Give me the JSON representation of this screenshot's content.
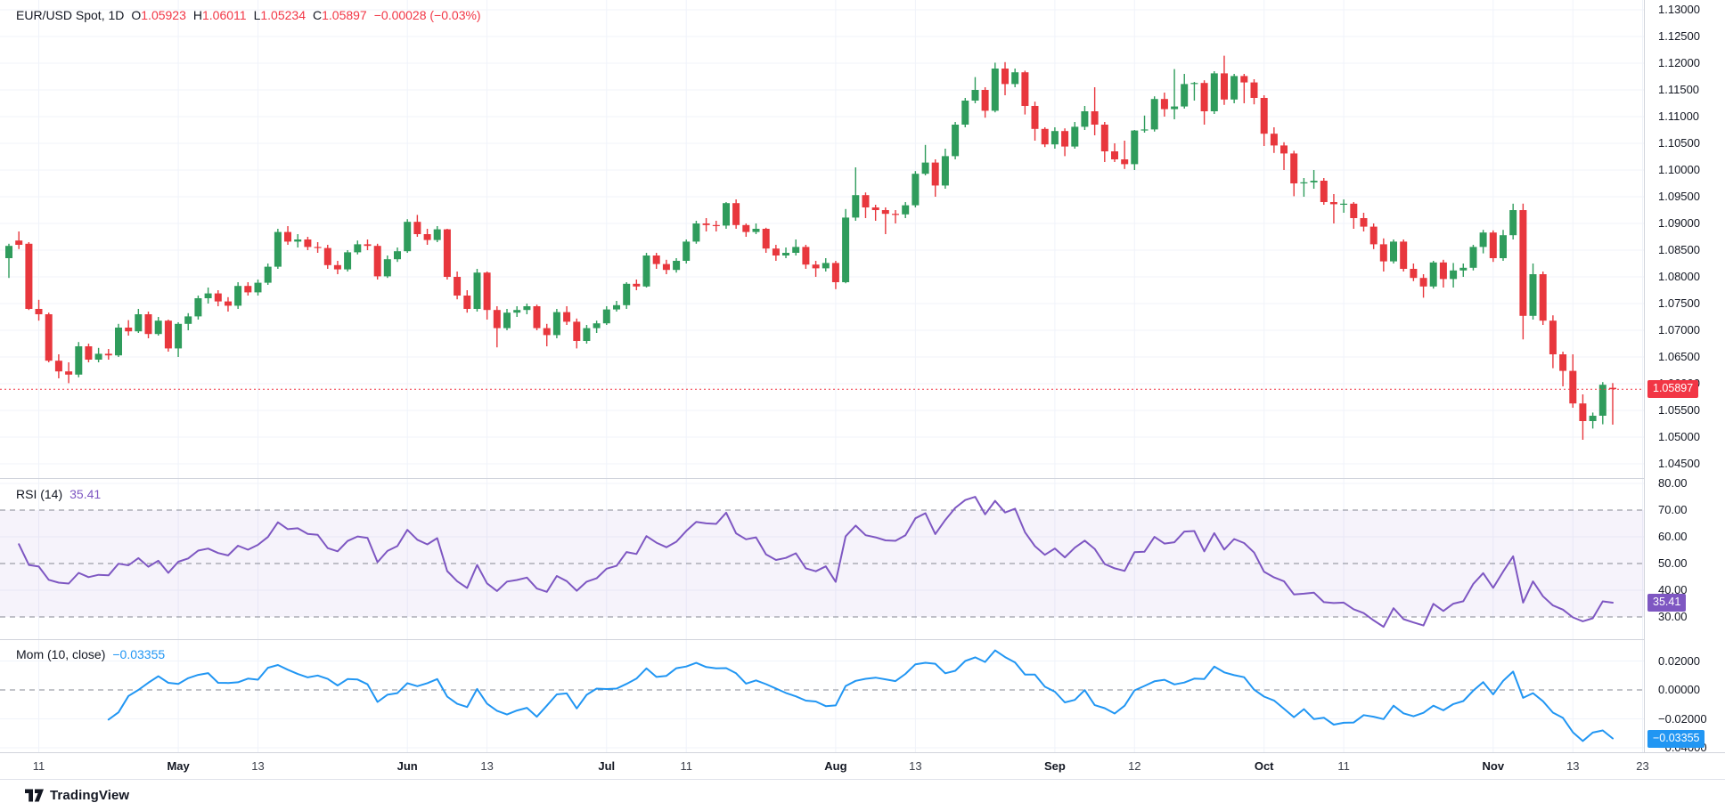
{
  "legend_price": {
    "title": "EUR/USD Spot, 1D",
    "o_label": "O",
    "o_value": "1.05923",
    "h_label": "H",
    "h_value": "1.06011",
    "l_label": "L",
    "l_value": "1.05234",
    "c_label": "C",
    "c_value": "1.05897",
    "change": "−0.00028 (−0.03%)"
  },
  "legend_rsi": {
    "title": "RSI (14)",
    "value": "35.41"
  },
  "legend_mom": {
    "title": "Mom (10, close)",
    "value": "−0.03355"
  },
  "tags": {
    "price": "1.05897",
    "rsi": "35.41",
    "mom": "−0.03355"
  },
  "footer": {
    "brand": "TradingView"
  },
  "chart_data": {
    "type": "candlestick",
    "title": "EUR/USD Spot, 1D",
    "symbol": "EUR/USD Spot",
    "interval": "1D",
    "last": {
      "open": 1.05923,
      "high": 1.06011,
      "low": 1.05234,
      "close": 1.05897,
      "change": "−0.00028",
      "change_pct": "−0.03%"
    },
    "price_axis_ticks": [
      {
        "label": "1.13000",
        "v": 1.13
      },
      {
        "label": "1.12500",
        "v": 1.125
      },
      {
        "label": "1.12000",
        "v": 1.12
      },
      {
        "label": "1.11500",
        "v": 1.115
      },
      {
        "label": "1.11000",
        "v": 1.11
      },
      {
        "label": "1.10500",
        "v": 1.105
      },
      {
        "label": "1.10000",
        "v": 1.1
      },
      {
        "label": "1.09500",
        "v": 1.095
      },
      {
        "label": "1.09000",
        "v": 1.09
      },
      {
        "label": "1.08500",
        "v": 1.085
      },
      {
        "label": "1.08000",
        "v": 1.08
      },
      {
        "label": "1.07500",
        "v": 1.075
      },
      {
        "label": "1.07000",
        "v": 1.07
      },
      {
        "label": "1.06500",
        "v": 1.065
      },
      {
        "label": "1.06000",
        "v": 1.06
      },
      {
        "label": "1.05500",
        "v": 1.055
      },
      {
        "label": "1.05000",
        "v": 1.05
      },
      {
        "label": "1.04500",
        "v": 1.045
      }
    ],
    "rsi_axis_ticks": [
      {
        "label": "80.00",
        "v": 80
      },
      {
        "label": "70.00",
        "v": 70
      },
      {
        "label": "60.00",
        "v": 60
      },
      {
        "label": "50.00",
        "v": 50
      },
      {
        "label": "40.00",
        "v": 40
      },
      {
        "label": "30.00",
        "v": 30
      }
    ],
    "mom_axis_ticks": [
      {
        "label": "0.02000",
        "v": 0.02
      },
      {
        "label": "0.00000",
        "v": 0
      },
      {
        "label": "−0.02000",
        "v": -0.02
      },
      {
        "label": "−0.04000",
        "v": -0.04
      }
    ],
    "time_labels": [
      {
        "label": "11",
        "i": 3
      },
      {
        "label": "May",
        "i": 17,
        "bold": true
      },
      {
        "label": "13",
        "i": 25
      },
      {
        "label": "Jun",
        "i": 40,
        "bold": true
      },
      {
        "label": "13",
        "i": 48
      },
      {
        "label": "Jul",
        "i": 60,
        "bold": true
      },
      {
        "label": "11",
        "i": 68
      },
      {
        "label": "Aug",
        "i": 83,
        "bold": true
      },
      {
        "label": "13",
        "i": 91
      },
      {
        "label": "Sep",
        "i": 105,
        "bold": true
      },
      {
        "label": "12",
        "i": 113
      },
      {
        "label": "Oct",
        "i": 126,
        "bold": true
      },
      {
        "label": "11",
        "i": 134
      },
      {
        "label": "Nov",
        "i": 149,
        "bold": true
      },
      {
        "label": "13",
        "i": 157
      },
      {
        "label": "23",
        "i": 164
      }
    ],
    "rsi_last": 35.41,
    "mom_last": -0.03355,
    "rsi_dashed_levels": [
      70,
      50,
      30
    ],
    "rsi_band": [
      30,
      70
    ],
    "rsi_grid_levels": [
      80,
      60,
      40
    ],
    "mom_dashed_levels": [
      0
    ],
    "mom_grid_levels": [
      0.02,
      -0.02,
      -0.04
    ],
    "price_ylim": [
      1.0425,
      1.1318
    ],
    "rsi_ylim": [
      26.5,
      81.5
    ],
    "mom_ylim": [
      -0.0431,
      0.0345
    ],
    "colors": {
      "up": "#2f9c5c",
      "down": "#e8373d",
      "last_price": "#f23645",
      "rsi": "#7e57c2",
      "mom": "#2196f3",
      "grid": "#f0f3fa",
      "dashed": "#858a93",
      "text": "#131722"
    },
    "candles": [
      [
        1.0835,
        1.0862,
        1.0798,
        1.0858
      ],
      [
        1.0868,
        1.0885,
        1.0852,
        1.086
      ],
      [
        1.0862,
        1.0865,
        1.0738,
        1.074
      ],
      [
        1.074,
        1.0757,
        1.0718,
        1.073
      ],
      [
        1.073,
        1.0733,
        1.064,
        1.0643
      ],
      [
        1.0643,
        1.0655,
        1.061,
        1.0623
      ],
      [
        1.0623,
        1.064,
        1.0601,
        1.0617
      ],
      [
        1.0617,
        1.0678,
        1.0612,
        1.067
      ],
      [
        1.067,
        1.0675,
        1.064,
        1.0645
      ],
      [
        1.0645,
        1.0667,
        1.064,
        1.0656
      ],
      [
        1.0656,
        1.0665,
        1.0645,
        1.0653
      ],
      [
        1.0653,
        1.0712,
        1.065,
        1.0705
      ],
      [
        1.0705,
        1.0719,
        1.069,
        1.0698
      ],
      [
        1.0698,
        1.074,
        1.0695,
        1.073
      ],
      [
        1.073,
        1.0735,
        1.0685,
        1.0693
      ],
      [
        1.0693,
        1.0725,
        1.069,
        1.0718
      ],
      [
        1.0718,
        1.072,
        1.066,
        1.0666
      ],
      [
        1.0666,
        1.0715,
        1.065,
        1.0712
      ],
      [
        1.0712,
        1.0732,
        1.07,
        1.0726
      ],
      [
        1.0726,
        1.0765,
        1.072,
        1.076
      ],
      [
        1.076,
        1.078,
        1.075,
        1.0769
      ],
      [
        1.0769,
        1.0775,
        1.0745,
        1.0754
      ],
      [
        1.0754,
        1.0762,
        1.0735,
        1.0746
      ],
      [
        1.0746,
        1.079,
        1.074,
        1.0783
      ],
      [
        1.0783,
        1.079,
        1.0765,
        1.0771
      ],
      [
        1.0771,
        1.0795,
        1.0765,
        1.0789
      ],
      [
        1.0789,
        1.0825,
        1.0785,
        1.0819
      ],
      [
        1.0819,
        1.089,
        1.0815,
        1.0884
      ],
      [
        1.0884,
        1.0895,
        1.086,
        1.0866
      ],
      [
        1.0866,
        1.088,
        1.0855,
        1.087
      ],
      [
        1.087,
        1.0875,
        1.085,
        1.0856
      ],
      [
        1.0856,
        1.0865,
        1.0845,
        1.0854
      ],
      [
        1.0854,
        1.086,
        1.0815,
        1.0822
      ],
      [
        1.0822,
        1.083,
        1.0805,
        1.0814
      ],
      [
        1.0814,
        1.085,
        1.081,
        1.0846
      ],
      [
        1.0846,
        1.0868,
        1.0842,
        1.0861
      ],
      [
        1.0861,
        1.087,
        1.085,
        1.0858
      ],
      [
        1.0858,
        1.0862,
        1.0795,
        1.0801
      ],
      [
        1.0801,
        1.084,
        1.0798,
        1.0833
      ],
      [
        1.0833,
        1.0855,
        1.0828,
        1.0848
      ],
      [
        1.0848,
        1.0908,
        1.0845,
        1.0903
      ],
      [
        1.0903,
        1.0916,
        1.0875,
        1.088
      ],
      [
        1.088,
        1.089,
        1.086,
        1.0869
      ],
      [
        1.0869,
        1.0895,
        1.0865,
        1.0889
      ],
      [
        1.0889,
        1.089,
        1.0795,
        1.08
      ],
      [
        1.08,
        1.081,
        1.0758,
        1.0765
      ],
      [
        1.0765,
        1.0775,
        1.0733,
        1.074
      ],
      [
        1.074,
        1.0815,
        1.0735,
        1.0808
      ],
      [
        1.0808,
        1.081,
        1.072,
        1.0738
      ],
      [
        1.0738,
        1.0745,
        1.0668,
        1.0704
      ],
      [
        1.0704,
        1.074,
        1.07,
        1.0733
      ],
      [
        1.0733,
        1.0745,
        1.0725,
        1.0738
      ],
      [
        1.0738,
        1.075,
        1.073,
        1.0745
      ],
      [
        1.0745,
        1.0748,
        1.07,
        1.0704
      ],
      [
        1.0704,
        1.0712,
        1.067,
        1.0691
      ],
      [
        1.0691,
        1.074,
        1.0685,
        1.0734
      ],
      [
        1.0734,
        1.0745,
        1.071,
        1.0716
      ],
      [
        1.0716,
        1.0722,
        1.0666,
        1.068
      ],
      [
        1.068,
        1.071,
        1.0675,
        1.0704
      ],
      [
        1.0704,
        1.0718,
        1.0695,
        1.0713
      ],
      [
        1.0713,
        1.0745,
        1.071,
        1.0739
      ],
      [
        1.0739,
        1.0755,
        1.0735,
        1.0747
      ],
      [
        1.0747,
        1.079,
        1.074,
        1.0787
      ],
      [
        1.0787,
        1.0795,
        1.0775,
        1.0782
      ],
      [
        1.0782,
        1.0845,
        1.078,
        1.084
      ],
      [
        1.084,
        1.0845,
        1.0815,
        1.0824
      ],
      [
        1.0824,
        1.0832,
        1.0805,
        1.0813
      ],
      [
        1.0813,
        1.0835,
        1.0808,
        1.083
      ],
      [
        1.083,
        1.087,
        1.0825,
        1.0866
      ],
      [
        1.0866,
        1.0905,
        1.0862,
        1.09
      ],
      [
        1.09,
        1.091,
        1.0885,
        1.0897
      ],
      [
        1.0897,
        1.0905,
        1.0885,
        1.0896
      ],
      [
        1.0896,
        1.094,
        1.089,
        1.0938
      ],
      [
        1.0938,
        1.0945,
        1.089,
        1.0897
      ],
      [
        1.0897,
        1.09,
        1.0875,
        1.0884
      ],
      [
        1.0884,
        1.09,
        1.088,
        1.089
      ],
      [
        1.089,
        1.0892,
        1.0845,
        1.0853
      ],
      [
        1.0853,
        1.086,
        1.083,
        1.084
      ],
      [
        1.084,
        1.0855,
        1.0835,
        1.0845
      ],
      [
        1.0845,
        1.087,
        1.084,
        1.0856
      ],
      [
        1.0856,
        1.086,
        1.0815,
        1.0823
      ],
      [
        1.0823,
        1.083,
        1.08,
        1.0816
      ],
      [
        1.0816,
        1.0835,
        1.081,
        1.0826
      ],
      [
        1.0826,
        1.083,
        1.0777,
        1.079
      ],
      [
        1.079,
        1.0927,
        1.0788,
        1.0911
      ],
      [
        1.0911,
        1.1005,
        1.0905,
        1.0953
      ],
      [
        1.0953,
        1.0958,
        1.091,
        1.093
      ],
      [
        1.093,
        1.0935,
        1.0905,
        1.0925
      ],
      [
        1.0925,
        1.093,
        1.088,
        1.0918
      ],
      [
        1.0918,
        1.0925,
        1.09,
        1.0917
      ],
      [
        1.0917,
        1.094,
        1.091,
        1.0934
      ],
      [
        1.0934,
        1.0998,
        1.093,
        1.0993
      ],
      [
        1.0993,
        1.1047,
        1.099,
        1.1014
      ],
      [
        1.1014,
        1.102,
        1.095,
        1.0971
      ],
      [
        1.0971,
        1.104,
        1.0965,
        1.1026
      ],
      [
        1.1026,
        1.109,
        1.102,
        1.1085
      ],
      [
        1.1085,
        1.1135,
        1.108,
        1.113
      ],
      [
        1.113,
        1.1174,
        1.1125,
        1.115
      ],
      [
        1.115,
        1.1155,
        1.1098,
        1.1111
      ],
      [
        1.1111,
        1.1201,
        1.1108,
        1.119
      ],
      [
        1.119,
        1.1202,
        1.114,
        1.1161
      ],
      [
        1.1161,
        1.119,
        1.1155,
        1.1183
      ],
      [
        1.1183,
        1.1186,
        1.1104,
        1.112
      ],
      [
        1.112,
        1.1128,
        1.1055,
        1.1077
      ],
      [
        1.1077,
        1.108,
        1.1043,
        1.1048
      ],
      [
        1.1048,
        1.108,
        1.104,
        1.1073
      ],
      [
        1.1073,
        1.1078,
        1.1026,
        1.1044
      ],
      [
        1.1044,
        1.109,
        1.104,
        1.1081
      ],
      [
        1.1081,
        1.112,
        1.1075,
        1.111
      ],
      [
        1.111,
        1.1155,
        1.1065,
        1.1085
      ],
      [
        1.1085,
        1.109,
        1.1015,
        1.1035
      ],
      [
        1.1035,
        1.105,
        1.1015,
        1.102
      ],
      [
        1.102,
        1.1055,
        1.1002,
        1.1011
      ],
      [
        1.1011,
        1.1075,
        1.1,
        1.1074
      ],
      [
        1.1074,
        1.1102,
        1.107,
        1.1076
      ],
      [
        1.1076,
        1.1138,
        1.1072,
        1.1133
      ],
      [
        1.1133,
        1.1145,
        1.11,
        1.1114
      ],
      [
        1.1114,
        1.1189,
        1.1095,
        1.1119
      ],
      [
        1.1119,
        1.118,
        1.1115,
        1.1161
      ],
      [
        1.1161,
        1.1165,
        1.113,
        1.1163
      ],
      [
        1.1163,
        1.1168,
        1.1085,
        1.111
      ],
      [
        1.111,
        1.1185,
        1.1105,
        1.1181
      ],
      [
        1.1181,
        1.1214,
        1.1122,
        1.1132
      ],
      [
        1.1132,
        1.118,
        1.1125,
        1.1176
      ],
      [
        1.1176,
        1.118,
        1.1125,
        1.1164
      ],
      [
        1.1164,
        1.117,
        1.1123,
        1.1135
      ],
      [
        1.1135,
        1.114,
        1.1045,
        1.1068
      ],
      [
        1.1068,
        1.108,
        1.1032,
        1.1046
      ],
      [
        1.1046,
        1.1052,
        1.1,
        1.1031
      ],
      [
        1.1031,
        1.1036,
        1.0951,
        1.0975
      ],
      [
        1.0975,
        1.0985,
        1.095,
        1.0977
      ],
      [
        1.0977,
        1.1,
        1.0965,
        1.098
      ],
      [
        1.098,
        1.0985,
        1.0935,
        1.094
      ],
      [
        1.094,
        1.0955,
        1.09,
        1.0936
      ],
      [
        1.0936,
        1.0945,
        1.092,
        1.0937
      ],
      [
        1.0937,
        1.094,
        1.089,
        1.091
      ],
      [
        1.091,
        1.092,
        1.0885,
        1.0894
      ],
      [
        1.0894,
        1.09,
        1.0852,
        1.0861
      ],
      [
        1.0861,
        1.0872,
        1.081,
        1.0829
      ],
      [
        1.0829,
        1.087,
        1.0825,
        1.0866
      ],
      [
        1.0866,
        1.087,
        1.081,
        1.0815
      ],
      [
        1.0815,
        1.0825,
        1.0792,
        1.0798
      ],
      [
        1.0798,
        1.0805,
        1.0761,
        1.0782
      ],
      [
        1.0782,
        1.083,
        1.0778,
        1.0827
      ],
      [
        1.0827,
        1.0832,
        1.078,
        1.0796
      ],
      [
        1.0796,
        1.0826,
        1.078,
        1.0812
      ],
      [
        1.0812,
        1.0825,
        1.08,
        1.0817
      ],
      [
        1.0817,
        1.086,
        1.0812,
        1.0856
      ],
      [
        1.0856,
        1.0888,
        1.0844,
        1.0883
      ],
      [
        1.0883,
        1.0887,
        1.0828,
        1.0835
      ],
      [
        1.0835,
        1.0888,
        1.083,
        1.0878
      ],
      [
        1.0878,
        1.0937,
        1.087,
        1.0925
      ],
      [
        1.0925,
        1.0937,
        1.0683,
        1.0727
      ],
      [
        1.0727,
        1.0825,
        1.072,
        1.0805
      ],
      [
        1.0805,
        1.081,
        1.071,
        1.0718
      ],
      [
        1.0718,
        1.0728,
        1.0629,
        1.0655
      ],
      [
        1.0655,
        1.066,
        1.0595,
        1.0624
      ],
      [
        1.0624,
        1.0655,
        1.0555,
        1.0563
      ],
      [
        1.0563,
        1.058,
        1.0495,
        1.053
      ],
      [
        1.053,
        1.0546,
        1.0516,
        1.054
      ],
      [
        1.054,
        1.0603,
        1.0524,
        1.0598
      ],
      [
        1.05923,
        1.06011,
        1.05234,
        1.05897
      ]
    ]
  }
}
